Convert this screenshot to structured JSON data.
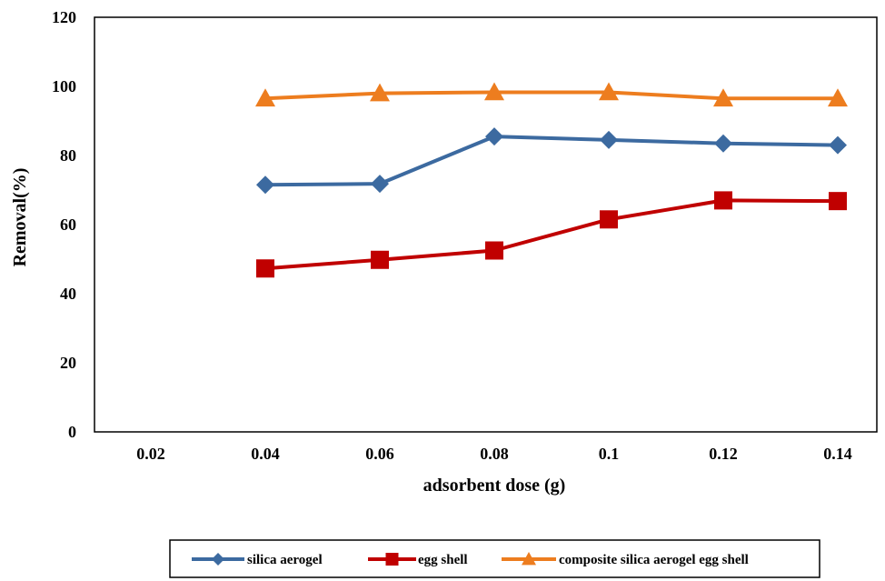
{
  "chart_data": {
    "type": "line",
    "xlabel": "adsorbent dose (g)",
    "ylabel": "Removal(%)",
    "x_ticks": [
      "0.02",
      "0.04",
      "0.06",
      "0.08",
      "0.1",
      "0.12",
      "0.14"
    ],
    "y_ticks": [
      "0",
      "20",
      "40",
      "60",
      "80",
      "100",
      "120"
    ],
    "ylim": [
      0,
      120
    ],
    "grid": false,
    "legend_position": "bottom",
    "series": [
      {
        "name": "silica aerogel",
        "color": "#3c6aa0",
        "marker": "diamond",
        "x": [
          0.04,
          0.06,
          0.08,
          0.1,
          0.12,
          0.14
        ],
        "y": [
          71.5,
          71.8,
          85.5,
          84.5,
          83.5,
          83.0
        ]
      },
      {
        "name": "egg shell",
        "color": "#c00000",
        "marker": "square",
        "x": [
          0.04,
          0.06,
          0.08,
          0.1,
          0.12,
          0.14
        ],
        "y": [
          47.3,
          49.8,
          52.5,
          61.5,
          67.0,
          66.8
        ]
      },
      {
        "name": "composite silica aerogel egg shell",
        "color": "#ed7d1f",
        "marker": "triangle",
        "x": [
          0.04,
          0.06,
          0.08,
          0.1,
          0.12,
          0.14
        ],
        "y": [
          96.5,
          98.0,
          98.3,
          98.3,
          96.5,
          96.5
        ]
      }
    ]
  }
}
